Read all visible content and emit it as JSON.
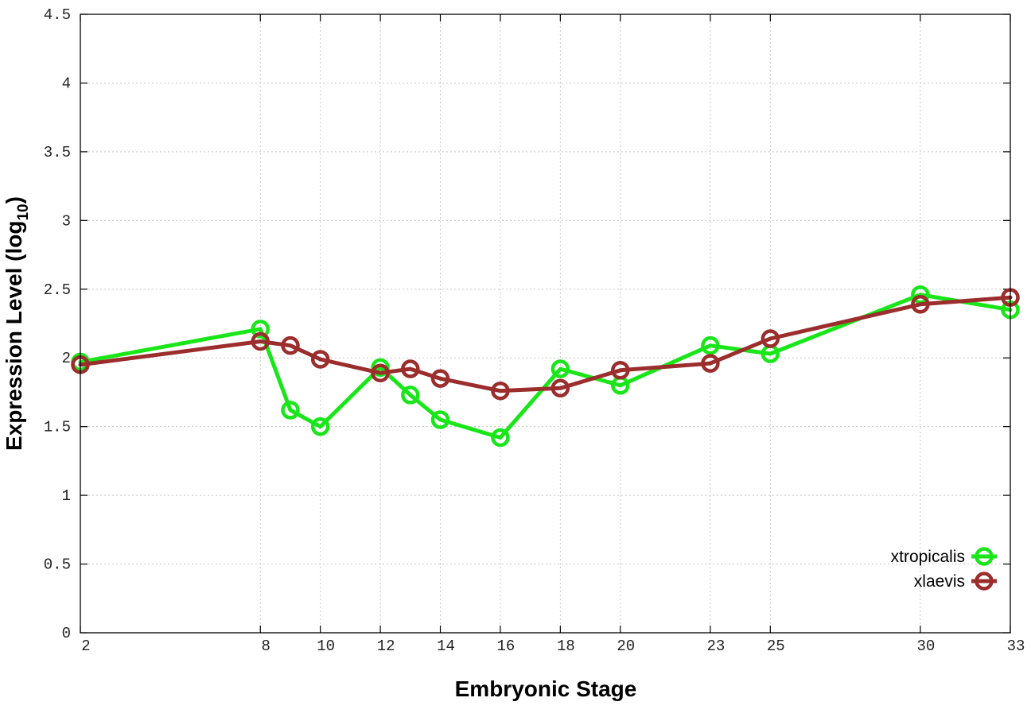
{
  "chart_data": {
    "type": "line",
    "xlabel": "Embryonic Stage",
    "ylabel_main": "Expression Level (log",
    "ylabel_sub": "10",
    "ylabel_close": ")",
    "xlim": [
      2,
      33
    ],
    "ylim": [
      0,
      4.5
    ],
    "x_ticks": [
      2,
      8,
      10,
      12,
      14,
      16,
      18,
      20,
      23,
      25,
      30,
      33
    ],
    "y_ticks": [
      0,
      0.5,
      1,
      1.5,
      2,
      2.5,
      3,
      3.5,
      4,
      4.5
    ],
    "x_tick_labels": [
      "2",
      "8",
      "10",
      "12",
      "14",
      "16",
      "18",
      "20",
      "23",
      "25",
      "30",
      "33"
    ],
    "y_tick_labels": [
      "0",
      "0.5",
      "1",
      "1.5",
      "2",
      "2.5",
      "3",
      "3.5",
      "4",
      "4.5"
    ],
    "grid": true,
    "legend_position": "bottom-right",
    "series": [
      {
        "name": "xtropicalis",
        "color": "#19e619",
        "x": [
          2,
          8,
          9,
          10,
          12,
          13,
          14,
          16,
          18,
          20,
          23,
          25,
          30,
          33
        ],
        "y": [
          1.97,
          2.21,
          1.62,
          1.5,
          1.93,
          1.73,
          1.55,
          1.42,
          1.92,
          1.8,
          2.09,
          2.03,
          2.46,
          2.35
        ]
      },
      {
        "name": "xlaevis",
        "color": "#9b2d2d",
        "x": [
          2,
          8,
          9,
          10,
          12,
          13,
          14,
          16,
          18,
          20,
          23,
          25,
          30,
          33
        ],
        "y": [
          1.95,
          2.12,
          2.09,
          1.99,
          1.89,
          1.92,
          1.85,
          1.76,
          1.78,
          1.91,
          1.96,
          2.14,
          2.39,
          2.44
        ]
      }
    ]
  }
}
